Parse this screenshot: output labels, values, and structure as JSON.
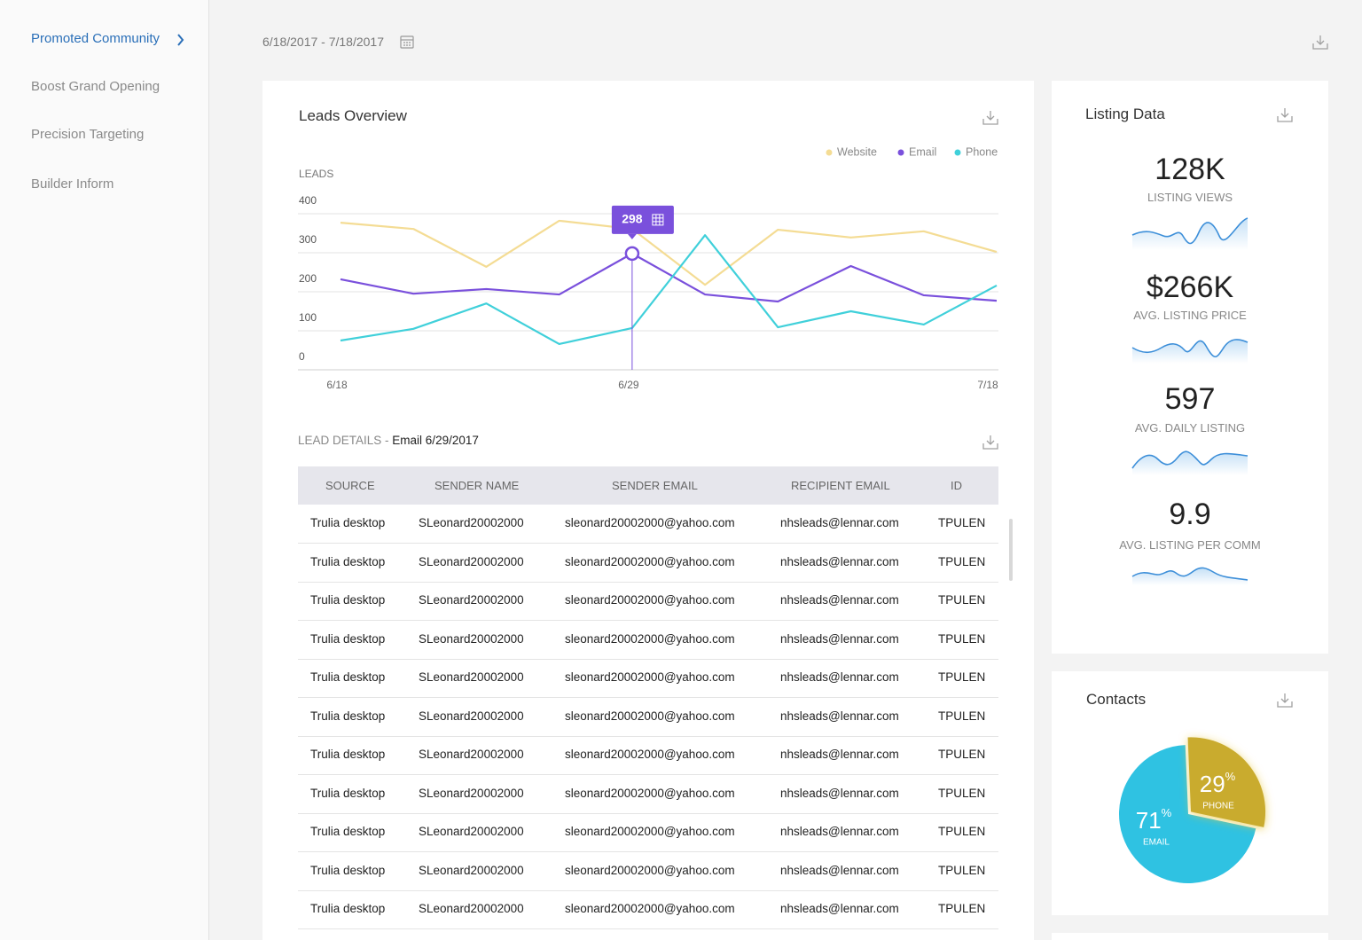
{
  "sidebar": {
    "items": [
      "Promoted Community",
      "Boost Grand Opening",
      "Precision Targeting",
      "Builder Inform"
    ]
  },
  "date_range": "6/18/2017 - 7/18/2017",
  "chart_data": [
    {
      "type": "line",
      "title": "Leads Overview",
      "y_label": "LEADS",
      "categories": [
        "6/18",
        null,
        null,
        null,
        "6/29",
        null,
        null,
        null,
        null,
        "7/18"
      ],
      "series": [
        {
          "name": "Website",
          "color": "#f4dc94",
          "values": [
            377,
            361,
            264,
            382,
            361,
            218,
            359,
            339,
            355,
            302
          ]
        },
        {
          "name": "Email",
          "color": "#7a50dc",
          "values": [
            232,
            195,
            207,
            193,
            298,
            193,
            175,
            266,
            191,
            177
          ]
        },
        {
          "name": "Phone",
          "color": "#40d0da",
          "values": [
            75,
            105,
            170,
            66,
            107,
            345,
            109,
            150,
            116,
            216
          ]
        }
      ],
      "ylim": [
        0,
        400
      ],
      "yticks": [
        0,
        100,
        200,
        300,
        400
      ],
      "grid": true
    },
    {
      "type": "pie",
      "title": "Contacts",
      "categories": [
        "EMAIL",
        "PHONE"
      ],
      "values": [
        71,
        29
      ],
      "unit": "%",
      "colors": [
        "#2fc2e2",
        "#c9ab2e"
      ]
    }
  ],
  "listing_data": {
    "title": "Listing Data",
    "stats": [
      {
        "value": "128K",
        "label": "LISTING VIEWS"
      },
      {
        "value": "$266K",
        "label": "AVG. LISTING PRICE"
      },
      {
        "value": "597",
        "label": "AVG. DAILY LISTING"
      },
      {
        "value": "9.9",
        "label": "AVG. LISTING PER COMM"
      }
    ]
  },
  "lead_details": {
    "label": "LEAD DETAILS -",
    "selection": "Email 6/29/2017",
    "columns": [
      "SOURCE",
      "SENDER NAME",
      "SENDER EMAIL",
      "RECIPIENT EMAIL",
      "ID"
    ],
    "rows": [
      [
        "Trulia desktop",
        "SLeonard20002000",
        "sleonard20002000@yahoo.com",
        "nhsleads@lennar.com",
        "TPULEN"
      ],
      [
        "Trulia desktop",
        "SLeonard20002000",
        "sleonard20002000@yahoo.com",
        "nhsleads@lennar.com",
        "TPULEN"
      ],
      [
        "Trulia desktop",
        "SLeonard20002000",
        "sleonard20002000@yahoo.com",
        "nhsleads@lennar.com",
        "TPULEN"
      ],
      [
        "Trulia desktop",
        "SLeonard20002000",
        "sleonard20002000@yahoo.com",
        "nhsleads@lennar.com",
        "TPULEN"
      ],
      [
        "Trulia desktop",
        "SLeonard20002000",
        "sleonard20002000@yahoo.com",
        "nhsleads@lennar.com",
        "TPULEN"
      ],
      [
        "Trulia desktop",
        "SLeonard20002000",
        "sleonard20002000@yahoo.com",
        "nhsleads@lennar.com",
        "TPULEN"
      ],
      [
        "Trulia desktop",
        "SLeonard20002000",
        "sleonard20002000@yahoo.com",
        "nhsleads@lennar.com",
        "TPULEN"
      ],
      [
        "Trulia desktop",
        "SLeonard20002000",
        "sleonard20002000@yahoo.com",
        "nhsleads@lennar.com",
        "TPULEN"
      ],
      [
        "Trulia desktop",
        "SLeonard20002000",
        "sleonard20002000@yahoo.com",
        "nhsleads@lennar.com",
        "TPULEN"
      ],
      [
        "Trulia desktop",
        "SLeonard20002000",
        "sleonard20002000@yahoo.com",
        "nhsleads@lennar.com",
        "TPULEN"
      ],
      [
        "Trulia desktop",
        "SLeonard20002000",
        "sleonard20002000@yahoo.com",
        "nhsleads@lennar.com",
        "TPULEN"
      ]
    ]
  }
}
